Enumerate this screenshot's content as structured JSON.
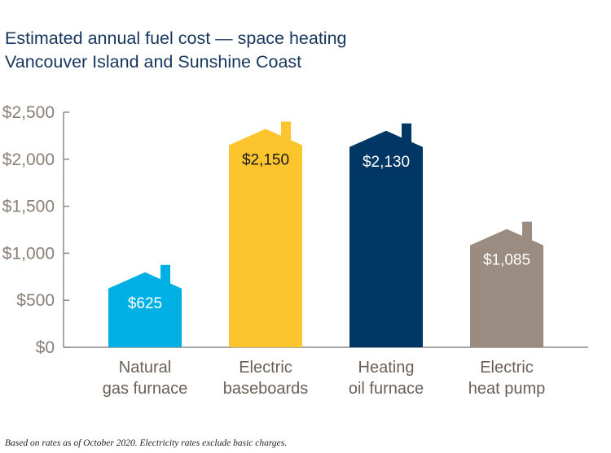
{
  "title_lines": [
    "Estimated annual fuel cost — space heating",
    "Vancouver Island and Sunshine Coast"
  ],
  "footnote": "Based on rates as of October 2020. Electricity rates exclude basic charges.",
  "chart_data": {
    "type": "bar",
    "title": "Estimated annual fuel cost — space heating Vancouver Island and Sunshine Coast",
    "categories": [
      [
        "Natural",
        "gas furnace"
      ],
      [
        "Electric",
        "baseboards"
      ],
      [
        "Heating",
        "oil furnace"
      ],
      [
        "Electric",
        "heat pump"
      ]
    ],
    "values": [
      625,
      2150,
      2130,
      1085
    ],
    "data_labels": [
      "$625",
      "$2,150",
      "$2,130",
      "$1,085"
    ],
    "bar_colors": [
      "#00afe3",
      "#fcc52e",
      "#003764",
      "#9a8c80"
    ],
    "label_colors": [
      "#ffffff",
      "#1a1a1a",
      "#ffffff",
      "#ffffff"
    ],
    "bar_shape": "house",
    "yticks": [
      0,
      500,
      1000,
      1500,
      2000,
      2500
    ],
    "ytick_labels": [
      "$0",
      "$500",
      "$1,000",
      "$1,500",
      "$2,000",
      "$2,500"
    ],
    "ylim": [
      0,
      2500
    ],
    "grid": false,
    "axis_color": "#8a8a8a",
    "tick_label_color": "#8a7f77",
    "category_label_color": "#6b6058"
  }
}
